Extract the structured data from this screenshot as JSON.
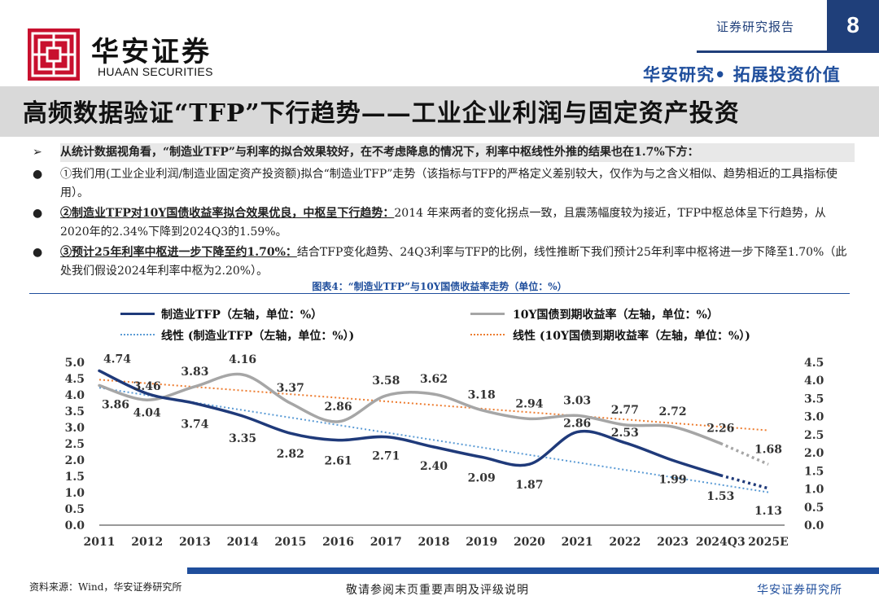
{
  "header": {
    "logo_cn": "华安证券",
    "logo_en": "HUAAN SECURITIES",
    "report_type": "证券研究报告",
    "page_number": "8",
    "slogan": "华安研究• 拓展投资价值"
  },
  "title": "高频数据验证“TFP”下行趋势——工业企业利润与固定资产投资",
  "bullets": [
    {
      "marker": "➢",
      "highlight": "",
      "text": "从统计数据视角看，“制造业TFP”与利率的拟合效果较好，在不考虑降息的情况下，利率中枢线性外推的结果也在1.7%下方："
    },
    {
      "marker": "●",
      "highlight": "",
      "text": "①我们用(工业企业利润/制造业固定资产投资额)拟合“制造业TFP”走势（该指标与TFP的严格定义差别较大，仅作为与之含义相似、趋势相近的工具指标使用）。"
    },
    {
      "marker": "●",
      "highlight": "②制造业TFP对10Y国债收益率拟合效果优良，中枢呈下行趋势：",
      "text": "2014 年来两者的变化拐点一致，且震荡幅度较为接近，TFP中枢总体呈下行趋势，从2020年的2.34%下降到2024Q3的1.59%。"
    },
    {
      "marker": "●",
      "highlight": "③预计25年利率中枢进一步下降至约1.70%：",
      "text": "结合TFP变化趋势、24Q3利率与TFP的比例，线性推断下我们预计25年利率中枢将进一步下降至1.70%（此处我们假设2024年利率中枢为2.20%）。"
    }
  ],
  "chart_title": "图表4：“制造业TFP”与10Y国债收益率走势（单位：%）",
  "chart_data": {
    "type": "line",
    "categories": [
      "2011",
      "2012",
      "2013",
      "2014",
      "2015",
      "2016",
      "2017",
      "2018",
      "2019",
      "2020",
      "2021",
      "2022",
      "2023",
      "2024Q3",
      "2025E"
    ],
    "series": [
      {
        "name": "制造业TFP（左轴，单位：%）",
        "axis": "left",
        "color": "#1f3a7a",
        "values": [
          4.74,
          4.04,
          3.74,
          3.35,
          2.82,
          2.61,
          2.71,
          2.4,
          2.09,
          1.87,
          2.86,
          2.53,
          1.99,
          1.53,
          1.13
        ]
      },
      {
        "name": "10Y国债到期收益率（左轴，单位：%）",
        "axis": "right",
        "color": "#a6a6a6",
        "values": [
          3.86,
          3.46,
          3.83,
          4.16,
          3.37,
          2.86,
          3.58,
          3.62,
          3.18,
          2.94,
          3.03,
          2.77,
          2.72,
          2.26,
          1.68
        ]
      },
      {
        "name": "线性 (制造业TFP（左轴，单位：%）)",
        "axis": "left",
        "color": "#5b9bd5",
        "style": "dotted",
        "values": [
          4.22,
          3.99,
          3.76,
          3.53,
          3.3,
          3.07,
          2.84,
          2.62,
          2.39,
          2.16,
          1.93,
          1.7,
          1.47,
          1.24,
          1.01
        ]
      },
      {
        "name": "线性 (10Y国债到期收益率（左轴，单位：%）)",
        "axis": "right",
        "color": "#ed7d31",
        "style": "dotted",
        "values": [
          4.02,
          3.92,
          3.82,
          3.72,
          3.62,
          3.52,
          3.42,
          3.32,
          3.22,
          3.12,
          3.02,
          2.92,
          2.82,
          2.72,
          2.62
        ]
      }
    ],
    "left_axis": {
      "min": 0,
      "max": 5,
      "ticks": [
        "0.0",
        "0.5",
        "1.0",
        "1.5",
        "2.0",
        "2.5",
        "3.0",
        "3.5",
        "4.0",
        "4.5",
        "5.0"
      ]
    },
    "right_axis": {
      "min": 0,
      "max": 4.5,
      "ticks": [
        "0.0",
        "0.5",
        "1.0",
        "1.5",
        "2.0",
        "2.5",
        "3.0",
        "3.5",
        "4.0",
        "4.5"
      ]
    },
    "grid": false,
    "legend_position": "top"
  },
  "footer": {
    "source": "资料来源：Wind，华安证券研究所",
    "disclaimer": "敬请参阅末页重要声明及评级说明",
    "firm": "华安证券研究所"
  },
  "colors": {
    "brand_red": "#c8102e",
    "brand_blue": "#1f3f7a",
    "accent_blue": "#1f4e9c",
    "title_band": "#d9d9d9"
  }
}
